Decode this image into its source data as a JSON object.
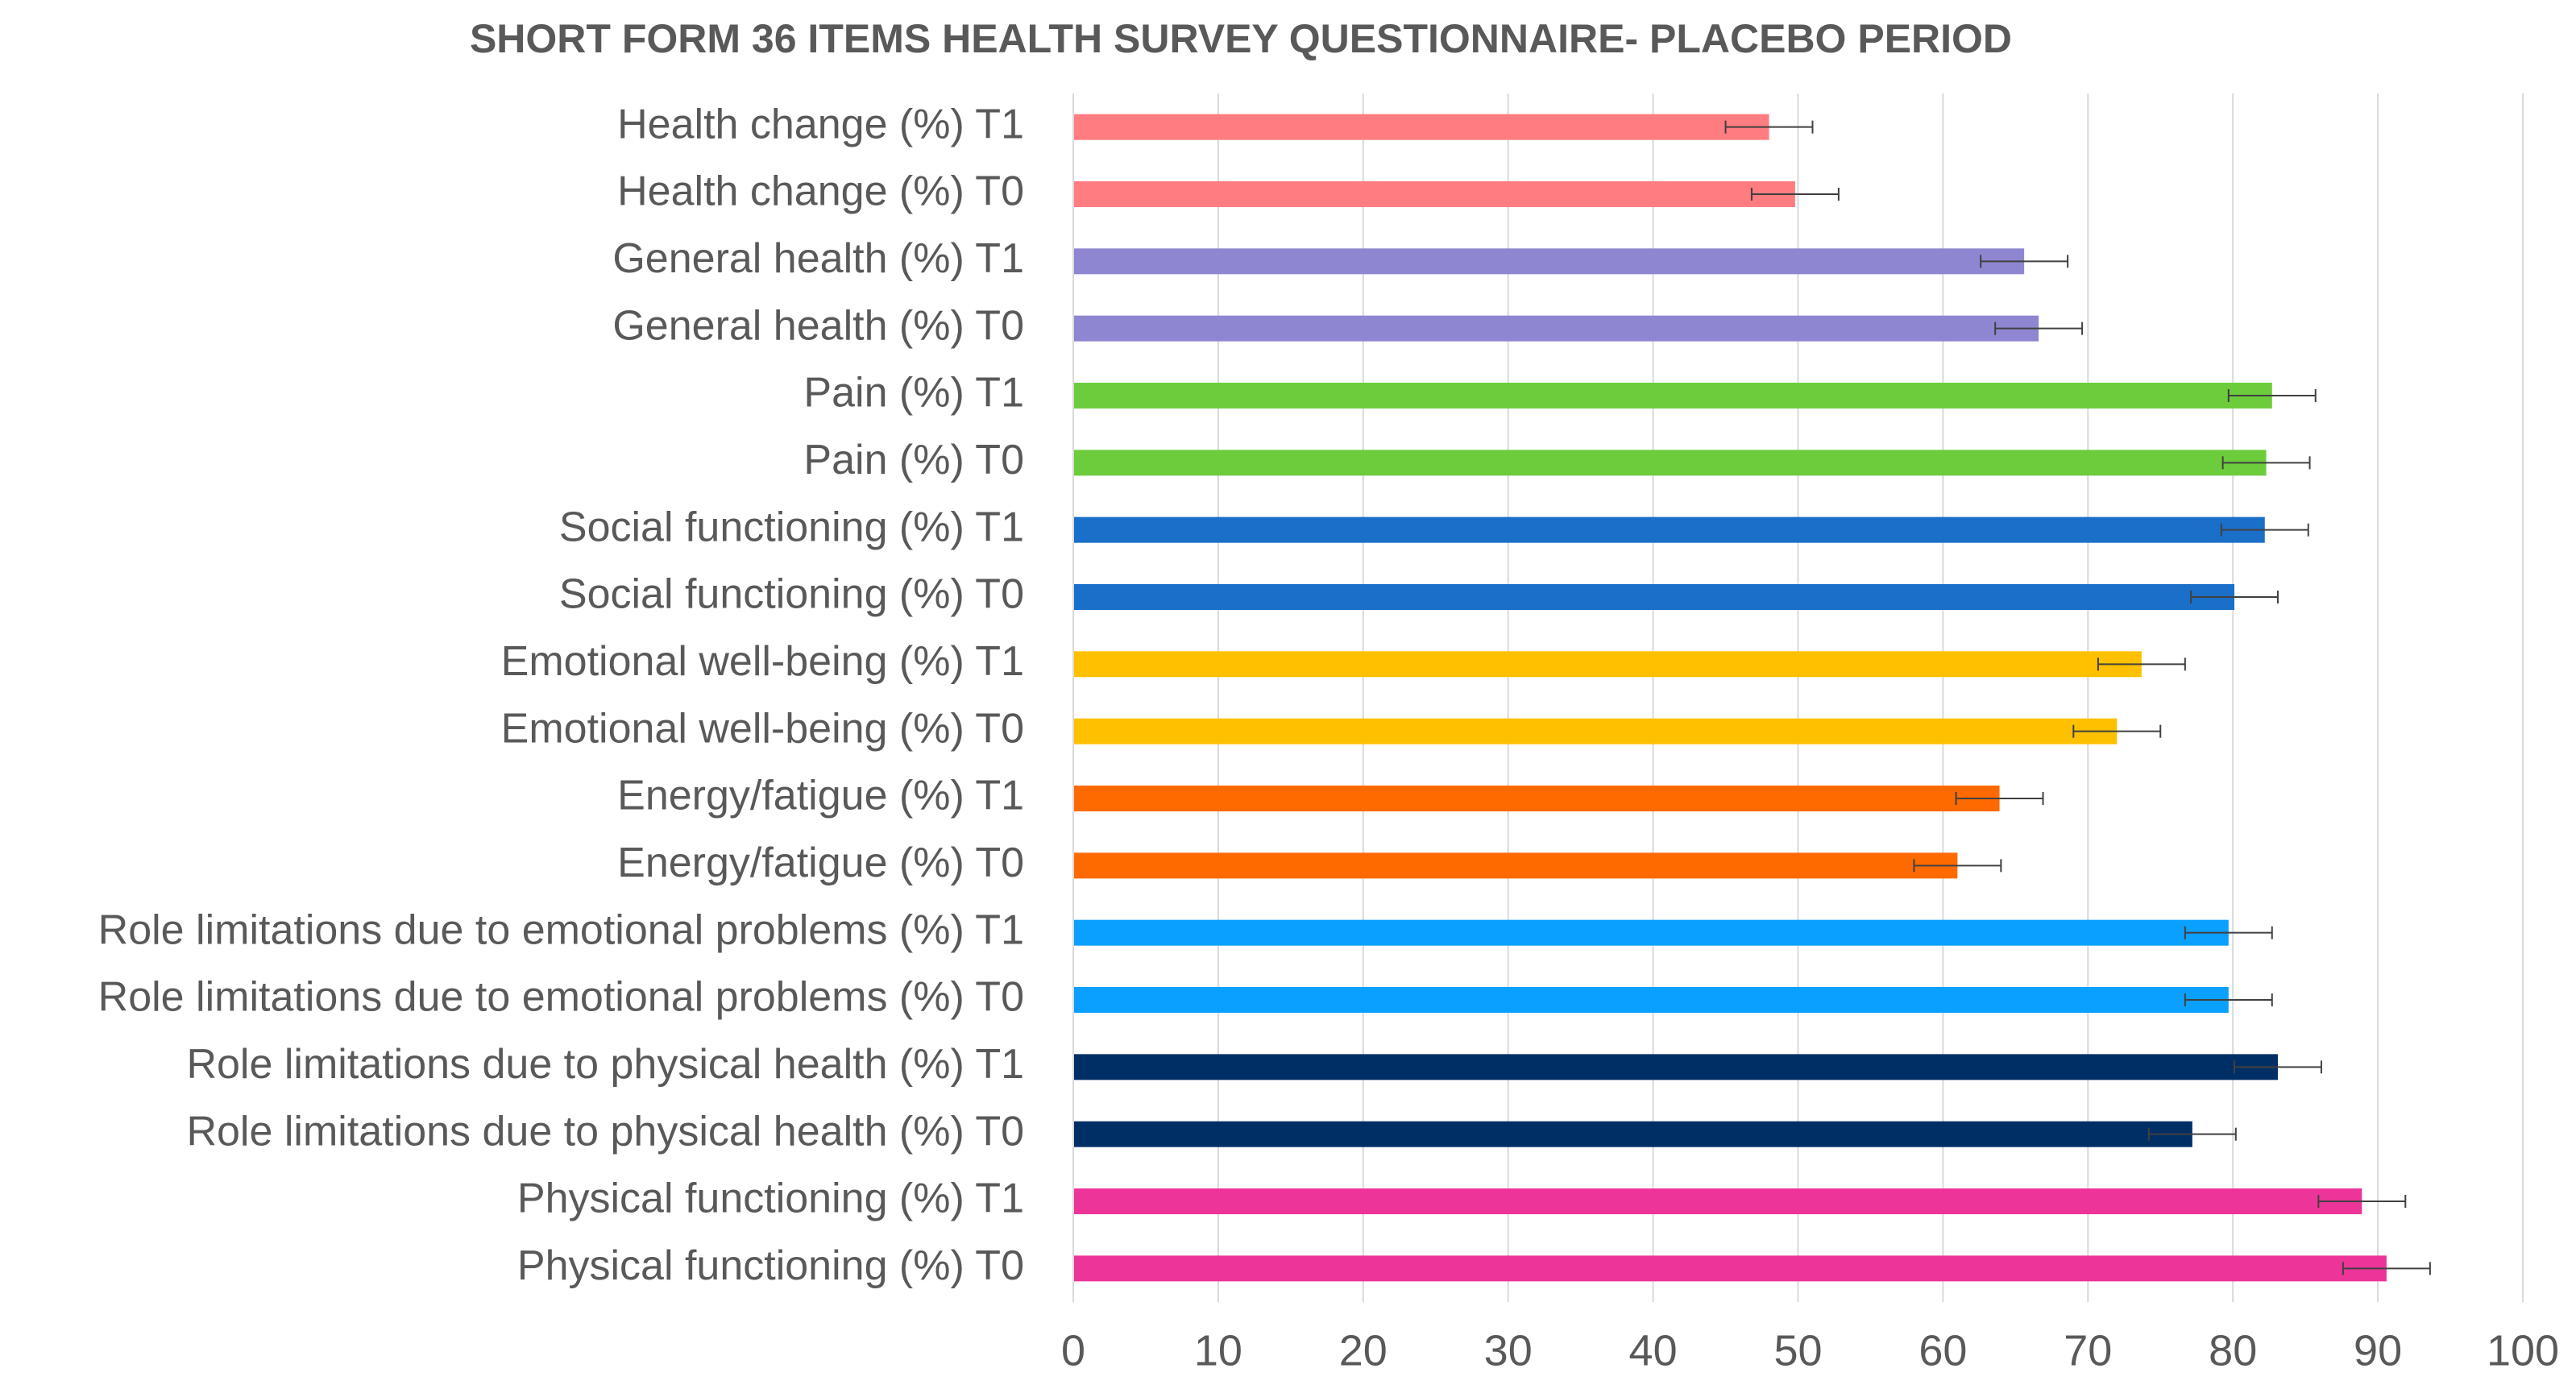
{
  "chart_data": {
    "type": "barh",
    "title": "SHORT FORM 36 ITEMS HEALTH SURVEY QUESTIONNAIRE- PLACEBO PERIOD",
    "categories": [
      "Health change (%) T1",
      "Health change (%) T0",
      "General health (%) T1",
      "General health (%) T0",
      "Pain (%) T1",
      "Pain (%) T0",
      "Social functioning (%) T1",
      "Social functioning (%) T0",
      "Emotional well-being (%) T1",
      "Emotional well-being (%) T0",
      "Energy/fatigue (%) T1",
      "Energy/fatigue (%) T0",
      "Role limitations due to emotional problems (%) T1",
      "Role limitations due to emotional problems (%) T0",
      "Role limitations due to physical health (%) T1",
      "Role limitations due to physical health (%) T0",
      "Physical functioning (%) T1",
      "Physical functioning (%) T0"
    ],
    "values": [
      48.0,
      49.8,
      65.6,
      66.6,
      82.7,
      82.3,
      82.2,
      80.1,
      73.7,
      72.0,
      63.9,
      61.0,
      79.7,
      79.7,
      83.1,
      77.2,
      88.9,
      90.6
    ],
    "errors": [
      3,
      3,
      3,
      3,
      3,
      3,
      3,
      3,
      3,
      3,
      3,
      3,
      3,
      3,
      3,
      3,
      3,
      3
    ],
    "colors": [
      "#ff7c80",
      "#ff7c80",
      "#8e86d0",
      "#8e86d0",
      "#6ccc3c",
      "#6ccc3c",
      "#1a6fc8",
      "#1a6fc8",
      "#ffc000",
      "#ffc000",
      "#ff6a00",
      "#ff6a00",
      "#0aa0ff",
      "#0aa0ff",
      "#002f66",
      "#002f66",
      "#ec3499",
      "#ec3499"
    ],
    "xlim": [
      0,
      100
    ],
    "xticks": [
      0,
      10,
      20,
      30,
      40,
      50,
      60,
      70,
      80,
      90,
      100
    ],
    "grid": true
  }
}
